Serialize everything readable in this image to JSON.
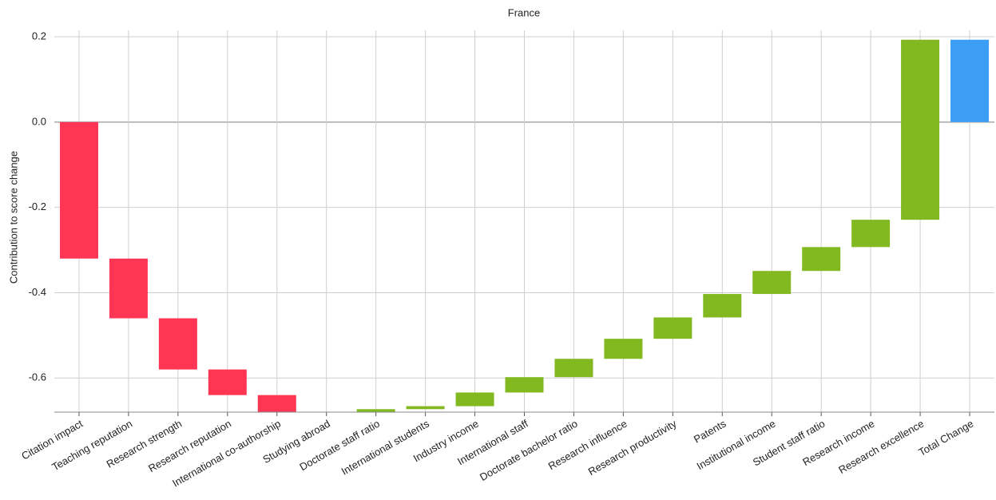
{
  "chart_data": {
    "type": "waterfall",
    "title": "France",
    "y_label": "Contribution to score change",
    "categories": [
      "Citation impact",
      "Teaching reputation",
      "Research strength",
      "Research reputation",
      "International co-authorship",
      "Studying abroad",
      "Doctorate staff ratio",
      "International students",
      "Industry income",
      "International staff",
      "Doctorate bachelor ratio",
      "Research influence",
      "Research productivity",
      "Patents",
      "Institutional income",
      "Student staff ratio",
      "Research income",
      "Research excellence",
      "Total Change"
    ],
    "values": [
      -0.32,
      -0.14,
      -0.12,
      -0.06,
      -0.05,
      -0.01,
      0.027,
      0.007,
      0.032,
      0.036,
      0.043,
      0.047,
      0.05,
      0.055,
      0.054,
      0.056,
      0.064,
      0.422,
      0.193
    ],
    "increase_color": "#82b921",
    "decrease_color": "#fe3654",
    "total_color": "#3c9ef5",
    "ylim": [
      -0.68,
      0.215
    ],
    "yticks": [
      -0.6,
      -0.4,
      -0.2,
      {
        "value": 0,
        "label": "0.0"
      },
      0.2
    ],
    "grid": true
  }
}
